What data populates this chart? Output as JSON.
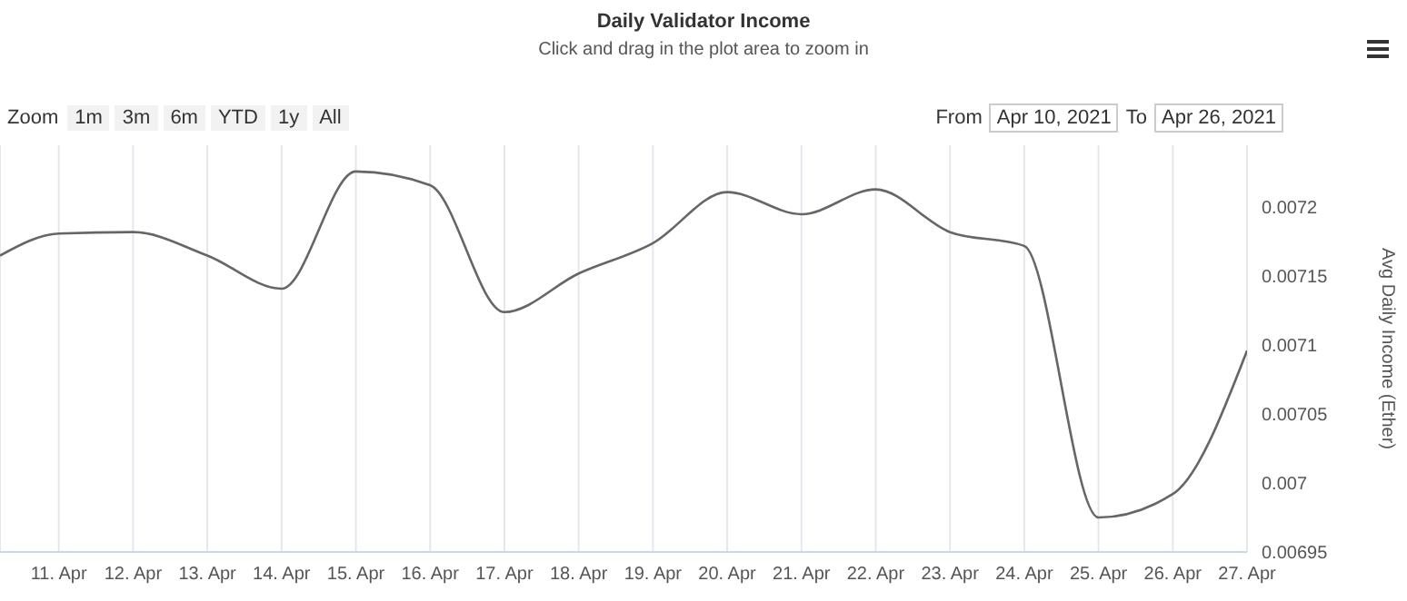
{
  "chart_data": {
    "type": "line",
    "title": "Daily Validator Income",
    "subtitle": "Click and drag in the plot area to zoom in",
    "ylabel": "Avg Daily Income (Ether)",
    "x": [
      "2021-04-10T05:00",
      "2021-04-11",
      "2021-04-12",
      "2021-04-13",
      "2021-04-14",
      "2021-04-15",
      "2021-04-16",
      "2021-04-17",
      "2021-04-18",
      "2021-04-19",
      "2021-04-20",
      "2021-04-21",
      "2021-04-22",
      "2021-04-23",
      "2021-04-24",
      "2021-04-25",
      "2021-04-26",
      "2021-04-27"
    ],
    "series": [
      {
        "color": "#666666",
        "values": [
          0.007165,
          0.007181,
          0.007182,
          0.007165,
          0.007141,
          0.007226,
          0.007216,
          0.007124,
          0.007152,
          0.007174,
          0.007211,
          0.007195,
          0.007213,
          0.007182,
          0.007172,
          0.006975,
          0.006992,
          0.007096
        ]
      }
    ],
    "xlim": [
      "2021-04-10T05:00",
      "2021-04-27"
    ],
    "xticks": [
      {
        "value": "2021-04-11",
        "label": "11. Apr"
      },
      {
        "value": "2021-04-12",
        "label": "12. Apr"
      },
      {
        "value": "2021-04-13",
        "label": "13. Apr"
      },
      {
        "value": "2021-04-14",
        "label": "14. Apr"
      },
      {
        "value": "2021-04-15",
        "label": "15. Apr"
      },
      {
        "value": "2021-04-16",
        "label": "16. Apr"
      },
      {
        "value": "2021-04-17",
        "label": "17. Apr"
      },
      {
        "value": "2021-04-18",
        "label": "18. Apr"
      },
      {
        "value": "2021-04-19",
        "label": "19. Apr"
      },
      {
        "value": "2021-04-20",
        "label": "20. Apr"
      },
      {
        "value": "2021-04-21",
        "label": "21. Apr"
      },
      {
        "value": "2021-04-22",
        "label": "22. Apr"
      },
      {
        "value": "2021-04-23",
        "label": "23. Apr"
      },
      {
        "value": "2021-04-24",
        "label": "24. Apr"
      },
      {
        "value": "2021-04-25",
        "label": "25. Apr"
      },
      {
        "value": "2021-04-26",
        "label": "26. Apr"
      },
      {
        "value": "2021-04-27",
        "label": "27. Apr"
      }
    ],
    "ylim": [
      0.00695,
      0.007245
    ],
    "yticks": [
      0.00695,
      0.007,
      0.00705,
      0.0071,
      0.00715,
      0.0072
    ],
    "grid": "x",
    "legend": false,
    "marker": "none",
    "line_style": "solid",
    "annotations": [
      "Zoom",
      "1m",
      "3m",
      "6m",
      "YTD",
      "1y",
      "All",
      "From",
      "Apr 10, 2021",
      "To",
      "Apr 26, 2021"
    ]
  }
}
